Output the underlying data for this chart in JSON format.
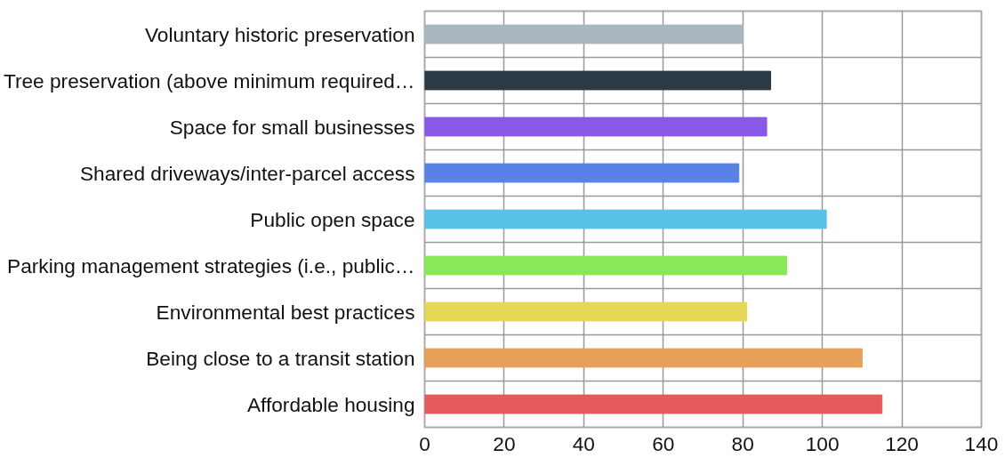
{
  "chart_data": {
    "type": "bar",
    "orientation": "horizontal",
    "categories": [
      "Voluntary historic preservation",
      "Tree preservation (above minimum required…",
      "Space for small businesses",
      "Shared driveways/inter-parcel access",
      "Public open space",
      "Parking management strategies (i.e., public…",
      "Environmental best practices",
      "Being close to a transit station",
      "Affordable housing"
    ],
    "values": [
      80,
      87,
      86,
      79,
      101,
      91,
      81,
      110,
      115
    ],
    "colors": [
      "#aab7bf",
      "#2b3a45",
      "#8a58e6",
      "#5882e6",
      "#57c4e5",
      "#8ae857",
      "#e5d857",
      "#e5a157",
      "#e55a5a"
    ],
    "xlim": [
      0,
      140
    ],
    "xticks": [
      0,
      20,
      40,
      60,
      80,
      100,
      120,
      140
    ],
    "grid": true
  }
}
